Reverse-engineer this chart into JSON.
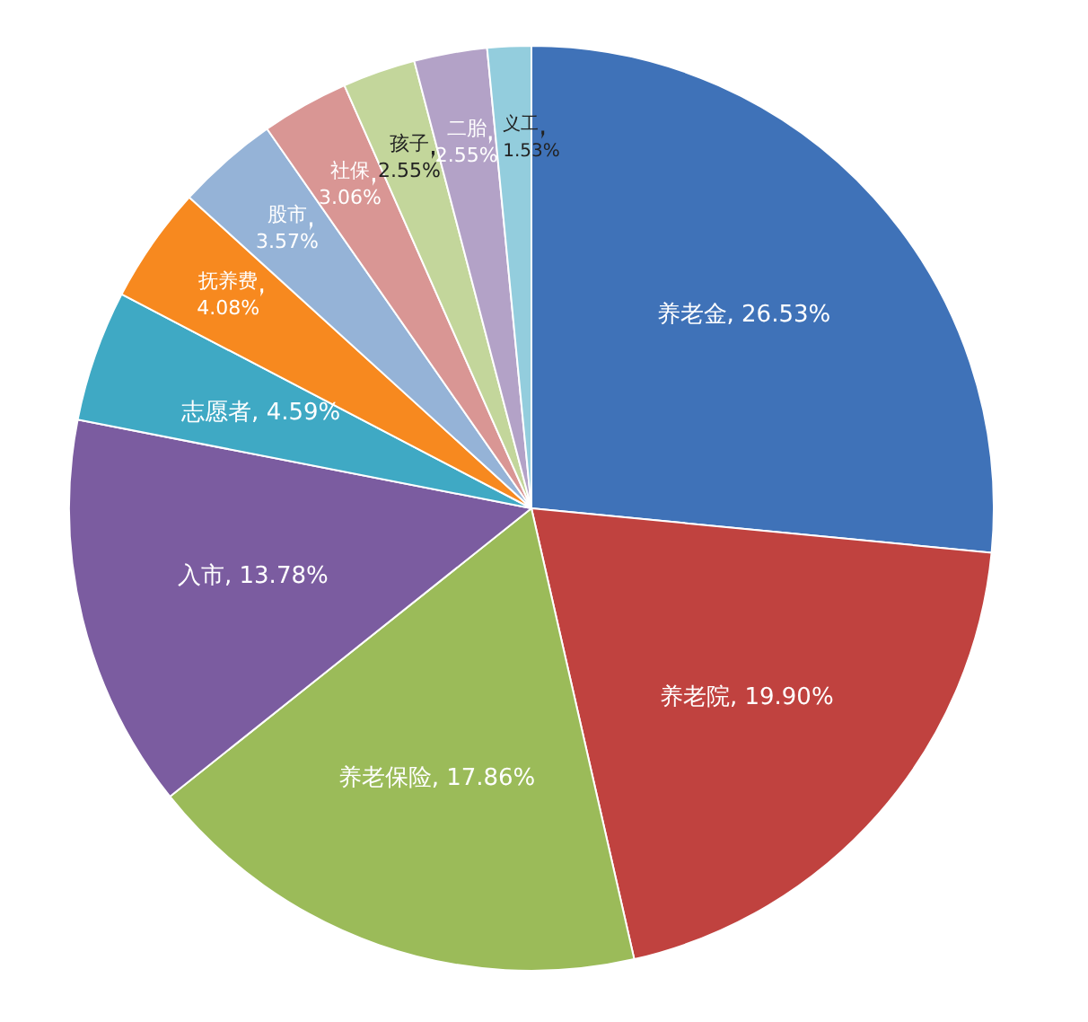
{
  "chart_data": {
    "type": "pie",
    "categories": [
      "养老金",
      "养老院",
      "养老保险",
      "入市",
      "志愿者",
      "抚养费",
      "股市",
      "社保",
      "孩子",
      "二胎",
      "义工"
    ],
    "values": [
      26.53,
      19.9,
      17.86,
      13.78,
      4.59,
      4.08,
      3.57,
      3.06,
      2.55,
      2.55,
      1.53
    ],
    "value_labels": [
      "26.53%",
      "19.90%",
      "17.86%",
      "13.78%",
      "4.59%",
      "4.08%",
      "3.57%",
      "3.06%",
      "2.55%",
      "2.55%",
      "1.53%"
    ],
    "colors": [
      "#3f72b8",
      "#c0423f",
      "#9bbb59",
      "#7b5ca0",
      "#3fa9c4",
      "#f7891f",
      "#95b3d7",
      "#d99694",
      "#c3d69b",
      "#b3a2c7",
      "#93cddd"
    ],
    "legend": false
  }
}
